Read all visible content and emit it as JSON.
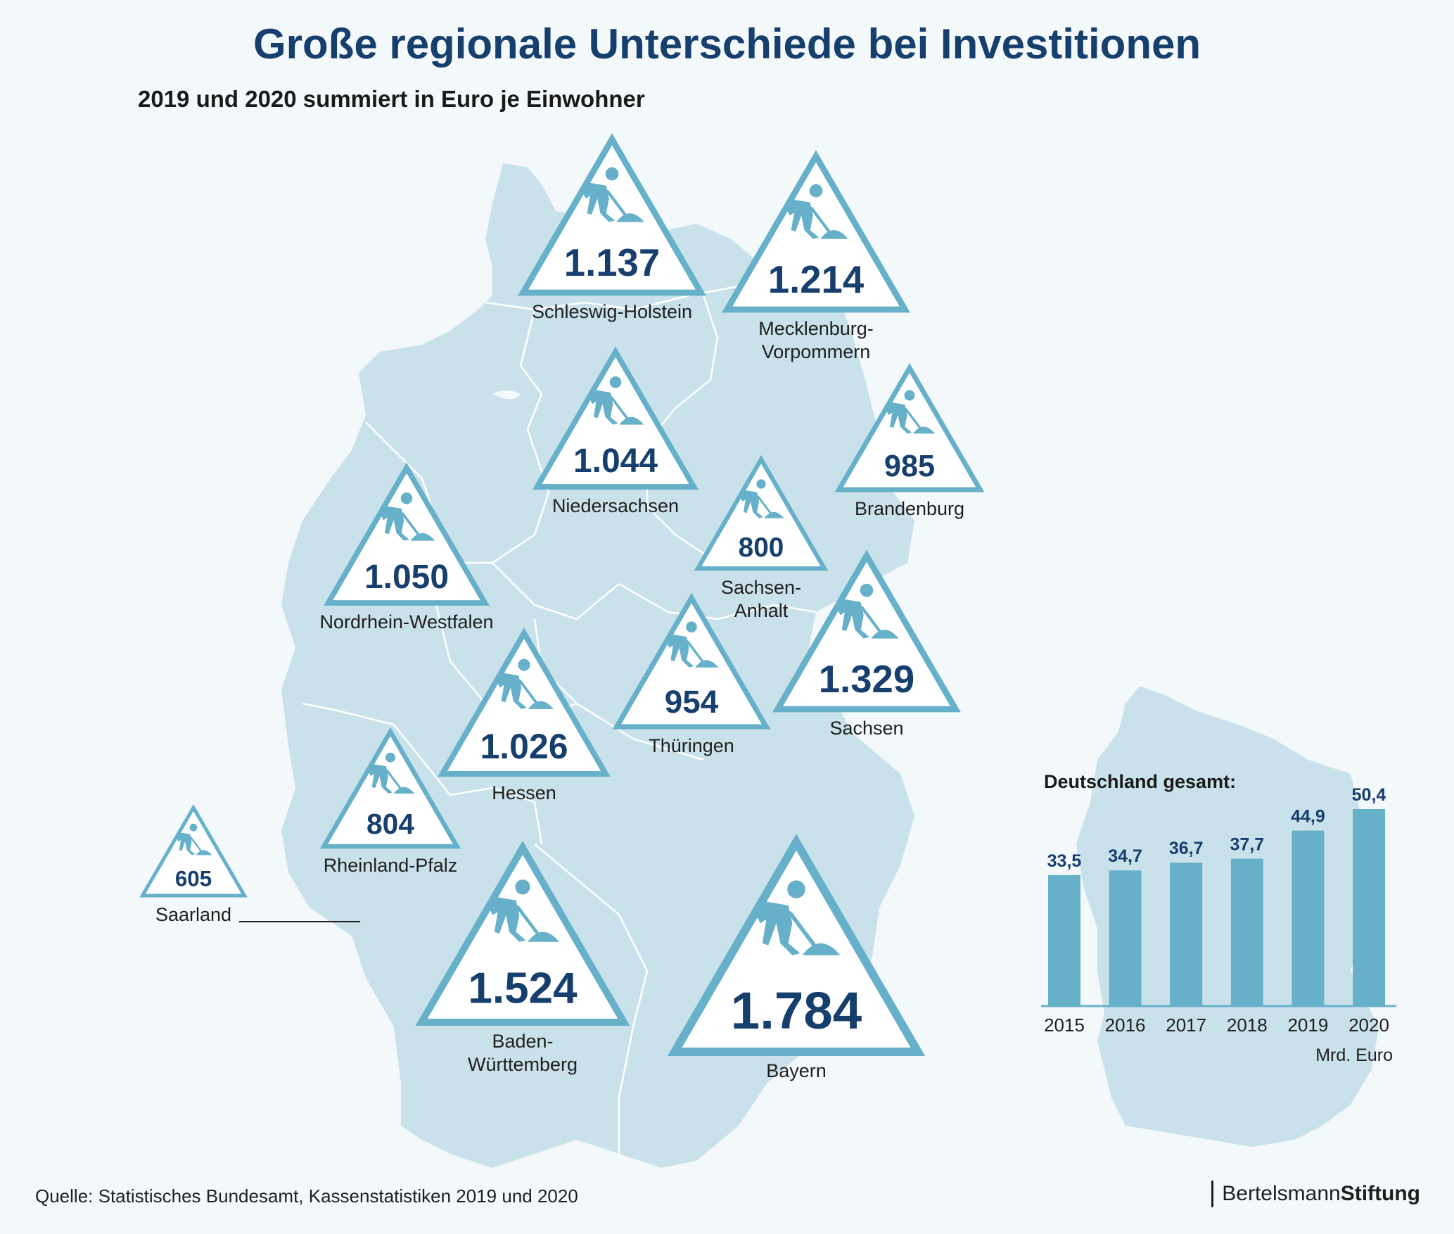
{
  "title": "Große regionale Unterschiede bei Investitionen",
  "subtitle": "2019 und 2020 summiert in Euro je Einwohner",
  "source": "Quelle: Statistisches Bundesamt, Kassenstatistiken 2019 und 2020",
  "logo": {
    "light": "Bertelsmann",
    "bold": "Stiftung"
  },
  "colors": {
    "dark_blue": "#173f6e",
    "accent": "#67b0c9",
    "map_fill": "#c9e1ea",
    "background": "#f3f8fb"
  },
  "icon": "construction-worker-shovel-icon",
  "chart_data": [
    {
      "type": "map",
      "unit": "Euro je Einwohner",
      "regions": [
        {
          "name": "Schleswig-Holstein",
          "label": "Schleswig-Holstein",
          "value": 1137,
          "display": "1.137"
        },
        {
          "name": "Mecklenburg-Vorpommern",
          "label": "Mecklenburg-\nVorpommern",
          "value": 1214,
          "display": "1.214"
        },
        {
          "name": "Niedersachsen",
          "label": "Niedersachsen",
          "value": 1044,
          "display": "1.044"
        },
        {
          "name": "Brandenburg",
          "label": "Brandenburg",
          "value": 985,
          "display": "985"
        },
        {
          "name": "Sachsen-Anhalt",
          "label": "Sachsen-\nAnhalt",
          "value": 800,
          "display": "800"
        },
        {
          "name": "Nordrhein-Westfalen",
          "label": "Nordrhein-Westfalen",
          "value": 1050,
          "display": "1.050"
        },
        {
          "name": "Sachsen",
          "label": "Sachsen",
          "value": 1329,
          "display": "1.329"
        },
        {
          "name": "Thüringen",
          "label": "Thüringen",
          "value": 954,
          "display": "954"
        },
        {
          "name": "Hessen",
          "label": "Hessen",
          "value": 1026,
          "display": "1.026"
        },
        {
          "name": "Rheinland-Pfalz",
          "label": "Rheinland-Pfalz",
          "value": 804,
          "display": "804"
        },
        {
          "name": "Saarland",
          "label": "Saarland",
          "value": 605,
          "display": "605"
        },
        {
          "name": "Baden-Württemberg",
          "label": "Baden-\nWürttemberg",
          "value": 1524,
          "display": "1.524"
        },
        {
          "name": "Bayern",
          "label": "Bayern",
          "value": 1784,
          "display": "1.784"
        }
      ]
    },
    {
      "type": "bar",
      "title": "Deutschland gesamt:",
      "unit": "Mrd. Euro",
      "categories": [
        "2015",
        "2016",
        "2017",
        "2018",
        "2019",
        "2020"
      ],
      "values": [
        33.5,
        34.7,
        36.7,
        37.7,
        44.9,
        50.4
      ],
      "value_labels": [
        "33,5",
        "34,7",
        "36,7",
        "37,7",
        "44,9",
        "50,4"
      ],
      "ylim": [
        0,
        50.4
      ],
      "color": "#67b0c9"
    }
  ]
}
